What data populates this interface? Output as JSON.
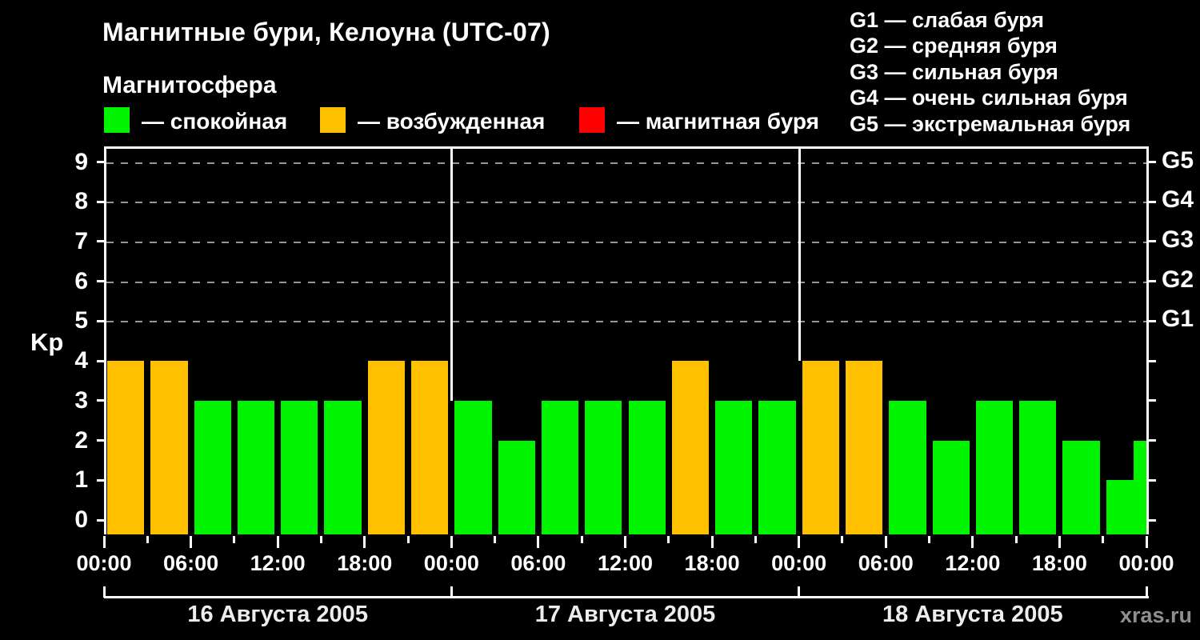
{
  "title": "Магнитные бури, Келоуна (UTC-07)",
  "subtitle": "Магнитосфера",
  "legend": [
    {
      "name": "quiet",
      "color": "#00F400",
      "label": "— спокойная"
    },
    {
      "name": "excited",
      "color": "#FFC000",
      "label": "— возбужденная"
    },
    {
      "name": "storm",
      "color": "#FF0000",
      "label": "— магнитная буря"
    }
  ],
  "storm_scale": [
    "G1 — слабая буря",
    "G2 — средняя буря",
    "G3 — сильная буря",
    "G4 — очень сильная буря",
    "G5 — экстремальная буря"
  ],
  "watermark": "xras.ru",
  "chart_data": {
    "type": "bar",
    "title": "Магнитные бури, Келоуна (UTC-07)",
    "ylabel": "Kp",
    "ylim": [
      0,
      9
    ],
    "y_ticks": [
      0,
      1,
      2,
      3,
      4,
      5,
      6,
      7,
      8,
      9
    ],
    "gridlines_kp": [
      5,
      6,
      7,
      8,
      9
    ],
    "right_axis_labels": [
      {
        "kp": 5,
        "label": "G1"
      },
      {
        "kp": 6,
        "label": "G2"
      },
      {
        "kp": 7,
        "label": "G3"
      },
      {
        "kp": 8,
        "label": "G4"
      },
      {
        "kp": 9,
        "label": "G5"
      }
    ],
    "interval_hours": 3,
    "x_tick_labels": [
      "00:00",
      "06:00",
      "12:00",
      "18:00",
      "00:00",
      "06:00",
      "12:00",
      "18:00",
      "00:00",
      "06:00",
      "12:00",
      "18:00",
      "00:00"
    ],
    "days": [
      {
        "date": "16 Августа 2005",
        "kp_values": [
          4,
          4,
          3,
          3,
          3,
          3,
          4,
          4
        ]
      },
      {
        "date": "17 Августа 2005",
        "kp_values": [
          3,
          2,
          3,
          3,
          3,
          4,
          3,
          3
        ]
      },
      {
        "date": "18 Августа 2005",
        "kp_values": [
          4,
          4,
          3,
          2,
          3,
          3,
          2,
          1
        ]
      }
    ],
    "next_day_partial_kp": 2,
    "colors": {
      "quiet": "#00F400",
      "excited": "#FFC000",
      "storm": "#FF0000"
    },
    "legend_position": "top",
    "grid": "dashed, levels 5-9 only"
  }
}
